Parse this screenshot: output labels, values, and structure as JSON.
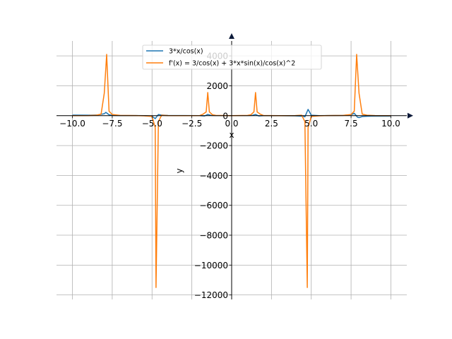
{
  "chart_data": {
    "type": "line",
    "title": "",
    "xlabel": "x",
    "ylabel": "y",
    "xlim": [
      -11.0,
      11.0
    ],
    "ylim": [
      -12300,
      5000
    ],
    "grid": true,
    "legend": "top-center",
    "x_ticks": [
      -10.0,
      -7.5,
      -5.0,
      -2.5,
      0.0,
      2.5,
      5.0,
      7.5,
      10.0
    ],
    "x_tick_labels": [
      "−10.0",
      "−7.5",
      "−5.0",
      "−2.5",
      "0.0",
      "2.5",
      "5.0",
      "7.5",
      "10.0"
    ],
    "y_ticks": [
      -12000,
      -10000,
      -8000,
      -6000,
      -4000,
      -2000,
      0,
      2000,
      4000
    ],
    "y_tick_labels": [
      "−12000",
      "−10000",
      "−8000",
      "−6000",
      "−4000",
      "−2000",
      "0",
      "2000",
      "4000"
    ],
    "series": [
      {
        "name": "3*x/cos(x)",
        "color": "#1f77b4",
        "x": [
          -10,
          -9,
          -8.4,
          -8.0,
          -7.9,
          -7.7,
          -7.5,
          -7.0,
          -6.0,
          -5.5,
          -5.0,
          -4.8,
          -4.6,
          -4.4,
          -4.0,
          -3.0,
          -2.0,
          -1.7,
          -1.5,
          -1.3,
          -1.0,
          0,
          1.0,
          1.3,
          1.5,
          1.7,
          2.0,
          3.0,
          4.0,
          4.5,
          4.6,
          4.8,
          5.0,
          5.5,
          6.0,
          7.0,
          7.5,
          7.7,
          7.9,
          8.0,
          8.2,
          8.5,
          9,
          10
        ],
        "y": [
          36,
          30,
          50,
          130,
          220,
          60,
          20,
          10,
          5,
          0,
          -30,
          -200,
          80,
          40,
          15,
          5,
          0,
          -20,
          80,
          20,
          5,
          0,
          5,
          20,
          80,
          -20,
          0,
          -5,
          -15,
          -40,
          -80,
          420,
          30,
          0,
          5,
          20,
          60,
          160,
          -100,
          -130,
          -60,
          -40,
          -30,
          -36
        ]
      },
      {
        "name": "f'(x) = 3/cos(x) + 3*x*sin(x)/cos(x)^2",
        "color": "#ff7f0e",
        "x": [
          -10,
          -9,
          -8.5,
          -8.2,
          -8.0,
          -7.85,
          -7.7,
          -7.5,
          -7.0,
          -6.0,
          -5.5,
          -5.0,
          -4.8,
          -4.75,
          -4.6,
          -4.4,
          -4.0,
          -3.0,
          -2.0,
          -1.8,
          -1.6,
          -1.5,
          -1.4,
          -1.2,
          -1.0,
          0,
          1.0,
          1.2,
          1.4,
          1.5,
          1.6,
          1.8,
          2.0,
          3.0,
          4.0,
          4.4,
          4.6,
          4.75,
          4.8,
          5.0,
          5.5,
          6.0,
          7.0,
          7.5,
          7.7,
          7.85,
          8.0,
          8.2,
          8.5,
          9,
          10
        ],
        "y": [
          0,
          10,
          30,
          100,
          1500,
          4100,
          300,
          80,
          20,
          5,
          -10,
          -50,
          -800,
          -11500,
          -400,
          30,
          10,
          0,
          10,
          100,
          250,
          1550,
          250,
          60,
          20,
          3,
          20,
          60,
          250,
          1550,
          250,
          100,
          10,
          0,
          10,
          30,
          -400,
          -11500,
          -800,
          -50,
          -10,
          5,
          20,
          80,
          300,
          4100,
          1500,
          100,
          30,
          10,
          0
        ]
      }
    ]
  }
}
